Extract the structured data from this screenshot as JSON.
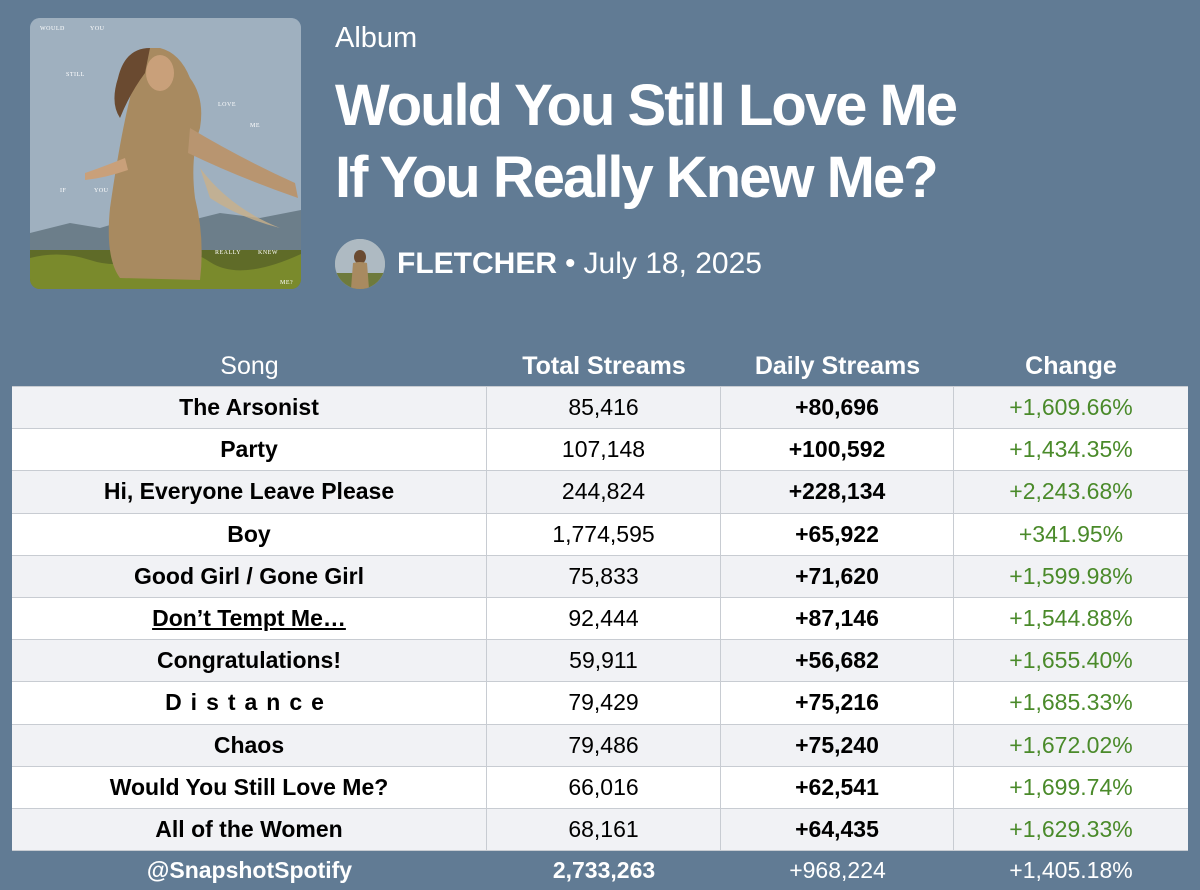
{
  "album": {
    "type_label": "Album",
    "title_line1": "Would You Still Love Me",
    "title_line2": "If You Really Knew Me?",
    "artist": "FLETCHER",
    "separator": "•",
    "release_date": "July 18, 2025",
    "cover_words": [
      "WOULD",
      "YOU",
      "STILL",
      "LOVE",
      "ME",
      "IF",
      "YOU",
      "REALLY",
      "KNEW",
      "ME?"
    ]
  },
  "table": {
    "headers": {
      "song": "Song",
      "total": "Total Streams",
      "daily": "Daily Streams",
      "change": "Change"
    },
    "rows": [
      {
        "song": "The Arsonist",
        "total": "85,416",
        "daily": "+80,696",
        "change": "+1,609.66%"
      },
      {
        "song": "Party",
        "total": "107,148",
        "daily": "+100,592",
        "change": "+1,434.35%"
      },
      {
        "song": "Hi, Everyone Leave Please",
        "total": "244,824",
        "daily": "+228,134",
        "change": "+2,243.68%"
      },
      {
        "song": "Boy",
        "total": "1,774,595",
        "daily": "+65,922",
        "change": "+341.95%"
      },
      {
        "song": "Good Girl / Gone Girl",
        "total": "75,833",
        "daily": "+71,620",
        "change": "+1,599.98%"
      },
      {
        "song": "Don’t Tempt Me…",
        "total": "92,444",
        "daily": "+87,146",
        "change": "+1,544.88%"
      },
      {
        "song": "Congratulations!",
        "total": "59,911",
        "daily": "+56,682",
        "change": "+1,655.40%"
      },
      {
        "song": "Distance",
        "total": "79,429",
        "daily": "+75,216",
        "change": "+1,685.33%"
      },
      {
        "song": "Chaos",
        "total": "79,486",
        "daily": "+75,240",
        "change": "+1,672.02%"
      },
      {
        "song": "Would You Still Love Me?",
        "total": "66,016",
        "daily": "+62,541",
        "change": "+1,699.74%"
      },
      {
        "song": "All of the Women",
        "total": "68,161",
        "daily": "+64,435",
        "change": "+1,629.33%"
      }
    ],
    "footer": {
      "handle": "@SnapshotSpotify",
      "total": "2,733,263",
      "daily": "+968,224",
      "change": "+1,405.18%"
    }
  },
  "colors": {
    "background": "#617b94",
    "change_green": "#4a8a2a",
    "row_alt": "#f1f2f5"
  }
}
